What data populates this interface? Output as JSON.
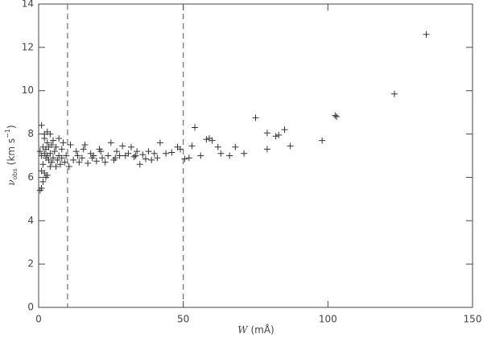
{
  "chart_data": {
    "type": "scatter",
    "x_label": {
      "symbol": "W",
      "unit": "(mÅ)"
    },
    "y_label": {
      "symbol": "ν",
      "subscript": "obs",
      "unit": "(km s",
      "exponent": "−1",
      "close": ")"
    },
    "xlim": [
      0,
      150
    ],
    "ylim": [
      0,
      14
    ],
    "xticks": [
      0,
      50,
      100,
      150
    ],
    "yticks": [
      0,
      2,
      4,
      6,
      8,
      10,
      12,
      14
    ],
    "vlines": [
      10,
      50
    ],
    "color": "#333333",
    "series": [
      {
        "x": [
          134,
          123,
          103,
          102.5,
          98,
          87,
          85,
          83,
          82,
          79,
          79,
          75,
          71,
          68,
          66,
          63,
          62,
          60,
          59,
          58,
          56,
          54,
          53,
          52,
          50.5,
          49,
          48,
          46,
          44,
          42,
          41,
          40,
          38,
          37,
          36,
          35,
          34,
          33,
          32,
          31,
          30,
          29,
          28,
          27,
          26,
          25,
          24,
          23,
          22,
          21,
          20,
          19,
          18,
          17,
          16,
          15,
          14,
          13,
          12,
          11,
          10.5,
          9.5,
          9,
          8.5,
          8,
          8,
          7.5,
          7,
          7,
          6.5,
          6,
          6,
          5.5,
          5,
          5,
          4.5,
          4.5,
          4,
          4,
          4,
          3.5,
          3.5,
          3,
          3,
          3,
          3,
          2.5,
          2.5,
          2.5,
          2,
          2,
          2,
          2,
          1.5,
          1.5,
          1.5,
          1,
          1,
          1,
          1,
          0.5,
          0.5,
          13.5,
          15.5,
          18.5,
          21.5,
          26.5,
          33.5,
          39
        ],
        "values": [
          12.6,
          9.85,
          8.8,
          8.85,
          7.7,
          7.45,
          8.2,
          7.95,
          7.9,
          8.05,
          7.3,
          8.75,
          7.1,
          7.4,
          7.0,
          7.1,
          7.4,
          7.7,
          7.8,
          7.75,
          7.0,
          8.3,
          7.45,
          6.9,
          6.85,
          7.3,
          7.4,
          7.15,
          7.1,
          7.6,
          6.9,
          7.1,
          7.2,
          6.85,
          7.05,
          6.6,
          7.2,
          6.95,
          7.4,
          7.1,
          7.0,
          7.45,
          7.0,
          7.2,
          6.8,
          7.6,
          7.0,
          6.7,
          6.9,
          7.3,
          6.75,
          7.0,
          7.1,
          6.65,
          7.5,
          6.9,
          6.7,
          7.2,
          6.8,
          7.5,
          6.5,
          7.0,
          6.7,
          7.6,
          6.9,
          7.3,
          6.6,
          7.8,
          7.0,
          6.8,
          7.4,
          6.5,
          7.2,
          6.9,
          7.7,
          6.7,
          7.5,
          6.5,
          7.1,
          8.0,
          6.8,
          7.4,
          6.1,
          7.0,
          7.6,
          8.1,
          6.0,
          6.9,
          7.3,
          6.2,
          7.1,
          7.8,
          8.0,
          5.8,
          6.6,
          7.4,
          5.5,
          6.3,
          7.0,
          8.4,
          5.4,
          7.2,
          7.0,
          7.3,
          6.9,
          7.2,
          6.9,
          7.0,
          6.8
        ]
      }
    ]
  }
}
